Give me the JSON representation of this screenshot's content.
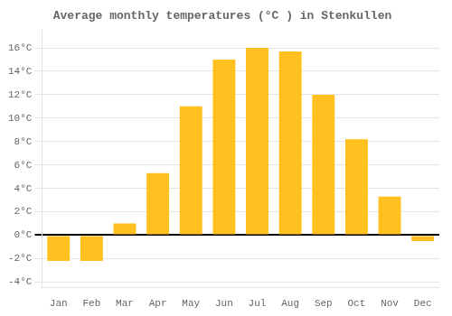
{
  "chart_data": {
    "type": "bar",
    "title": "Average monthly temperatures (°C ) in Stenkullen",
    "categories": [
      "Jan",
      "Feb",
      "Mar",
      "Apr",
      "May",
      "Jun",
      "Jul",
      "Aug",
      "Sep",
      "Oct",
      "Nov",
      "Dec"
    ],
    "values": [
      -2.2,
      -2.2,
      1.0,
      5.3,
      11.0,
      15.0,
      16.0,
      15.7,
      12.0,
      8.2,
      3.3,
      -0.5
    ],
    "color": "#FFC020",
    "ylim": [
      -4.5,
      17.5
    ],
    "yticks": [
      {
        "value": -4,
        "label": "-4°C"
      },
      {
        "value": -2,
        "label": "-2°C"
      },
      {
        "value": 0,
        "label": "0°C"
      },
      {
        "value": 2,
        "label": "2°C"
      },
      {
        "value": 4,
        "label": "4°C"
      },
      {
        "value": 6,
        "label": "6°C"
      },
      {
        "value": 8,
        "label": "8°C"
      },
      {
        "value": 10,
        "label": "10°C"
      },
      {
        "value": 12,
        "label": "12°C"
      },
      {
        "value": 14,
        "label": "14°C"
      },
      {
        "value": 16,
        "label": "16°C"
      }
    ],
    "grid": true
  }
}
